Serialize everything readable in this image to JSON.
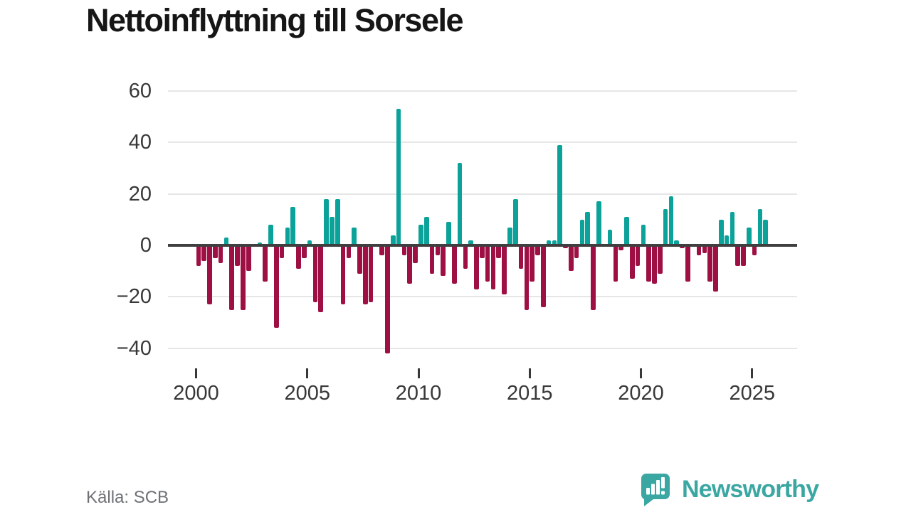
{
  "title": "Nettoinflyttning till Sorsele",
  "source": "Källa: SCB",
  "logo": {
    "text": "Newsworthy",
    "icon": "speech-bubble-bar-chart"
  },
  "colors": {
    "title_text": "#161616",
    "axis_text": "#383838",
    "grid_line": "#e6e6e6",
    "zero_line": "#3f3f3f",
    "positive_bar": "#0ba29a",
    "negative_bar": "#9e0f43",
    "source_text": "#6e7176",
    "logo_teal": "#3aa7a2"
  },
  "chart_data": {
    "type": "bar",
    "title": "Nettoinflyttning till Sorsele",
    "xlabel": "",
    "ylabel": "",
    "frequency": "quarterly",
    "start_period": "2000 Q1",
    "end_period": "2025 Q3",
    "ylim": [
      -45,
      63
    ],
    "grid": true,
    "legend": "none",
    "positive_color": "#0ba29a",
    "negative_color": "#9e0f43",
    "values": [
      -8,
      -6,
      -23,
      -5,
      -7,
      3,
      -25,
      -8,
      -25,
      -10,
      0,
      1,
      -14,
      8,
      -32,
      -5,
      7,
      15,
      -9,
      -5,
      2,
      -22,
      -26,
      18,
      11,
      18,
      -23,
      -5,
      7,
      -11,
      -23,
      -22,
      0,
      -4,
      -42,
      4,
      53,
      -4,
      -15,
      -7,
      8,
      11,
      -11,
      -4,
      -12,
      9,
      -15,
      32,
      -9,
      2,
      -17,
      -5,
      -14,
      -17,
      -5,
      -19,
      7,
      18,
      -9,
      -25,
      -14,
      -4,
      -24,
      2,
      2,
      39,
      -1,
      -10,
      -5,
      10,
      13,
      -25,
      17,
      0,
      6,
      -14,
      -2,
      11,
      -13,
      -8,
      8,
      -14,
      -15,
      -11,
      14,
      19,
      2,
      -1,
      -14,
      0,
      -4,
      -3,
      -14,
      -18,
      10,
      4,
      13,
      -8,
      -8,
      7,
      -4,
      14,
      10
    ],
    "y_ticks": [
      {
        "value": 60,
        "label": "60"
      },
      {
        "value": 40,
        "label": "40"
      },
      {
        "value": 20,
        "label": "20"
      },
      {
        "value": 0,
        "label": "0"
      },
      {
        "value": -20,
        "label": "−20"
      },
      {
        "value": -40,
        "label": "−40"
      }
    ],
    "x_ticks": [
      {
        "value": 2000,
        "label": "2000"
      },
      {
        "value": 2005,
        "label": "2005"
      },
      {
        "value": 2010,
        "label": "2010"
      },
      {
        "value": 2015,
        "label": "2015"
      },
      {
        "value": 2020,
        "label": "2020"
      },
      {
        "value": 2025,
        "label": "2025"
      }
    ]
  }
}
